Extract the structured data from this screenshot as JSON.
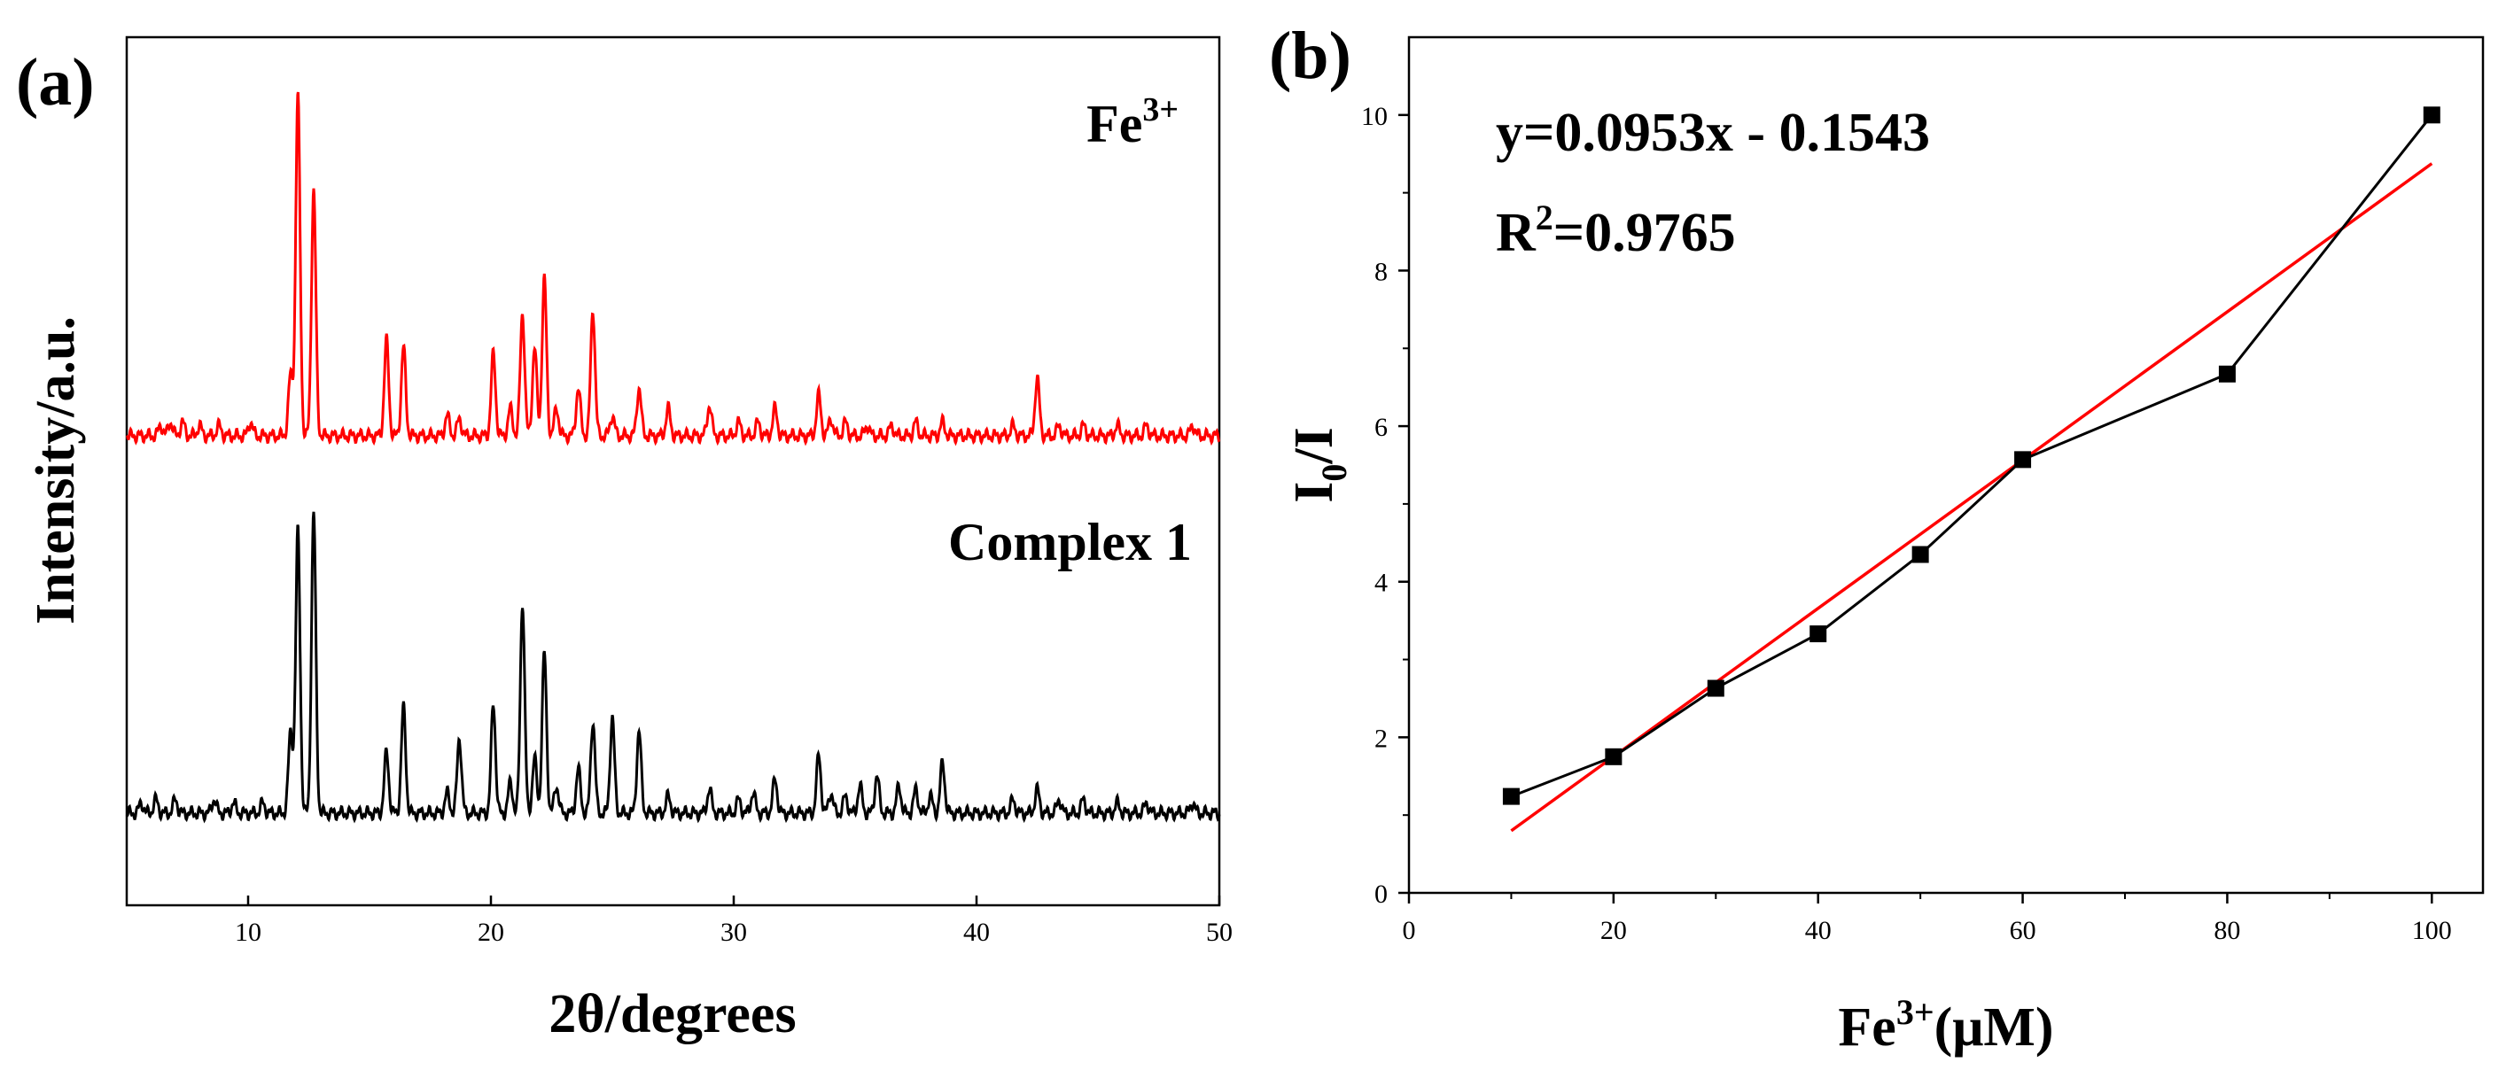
{
  "chart_data": [
    {
      "panel": "(a)",
      "type": "line",
      "xlabel": "2θ/degrees",
      "ylabel": "Intensity/a.u.",
      "xlim": [
        5,
        50
      ],
      "xticks": [
        "10",
        "20",
        "30",
        "40",
        "50"
      ],
      "series": [
        {
          "name": "Fe³⁺",
          "label_main": "Fe",
          "label_sup": "3+",
          "color": "#ff0000",
          "offset": 1.0,
          "peaks": [
            [
              6.4,
              0.03
            ],
            [
              6.8,
              0.04
            ],
            [
              7.3,
              0.04
            ],
            [
              8.0,
              0.03
            ],
            [
              8.8,
              0.03
            ],
            [
              10.1,
              0.04
            ],
            [
              11.75,
              0.18
            ],
            [
              12.05,
              1.0
            ],
            [
              12.7,
              0.72
            ],
            [
              15.7,
              0.28
            ],
            [
              16.4,
              0.26
            ],
            [
              18.2,
              0.06
            ],
            [
              18.7,
              0.05
            ],
            [
              20.1,
              0.24
            ],
            [
              20.8,
              0.08
            ],
            [
              21.3,
              0.36
            ],
            [
              21.8,
              0.26
            ],
            [
              22.2,
              0.46
            ],
            [
              22.7,
              0.08
            ],
            [
              23.6,
              0.14
            ],
            [
              24.2,
              0.37
            ],
            [
              25.0,
              0.06
            ],
            [
              26.1,
              0.14
            ],
            [
              27.3,
              0.08
            ],
            [
              29.0,
              0.09
            ],
            [
              30.2,
              0.04
            ],
            [
              31.0,
              0.04
            ],
            [
              31.7,
              0.08
            ],
            [
              33.5,
              0.12
            ],
            [
              34.0,
              0.05
            ],
            [
              34.6,
              0.04
            ],
            [
              35.5,
              0.03
            ],
            [
              36.5,
              0.03
            ],
            [
              37.5,
              0.04
            ],
            [
              38.6,
              0.04
            ],
            [
              41.5,
              0.03
            ],
            [
              42.5,
              0.17
            ],
            [
              43.4,
              0.03
            ],
            [
              44.4,
              0.03
            ],
            [
              45.8,
              0.03
            ],
            [
              47.0,
              0.03
            ],
            [
              48.9,
              0.03
            ]
          ]
        },
        {
          "name": "Complex 1",
          "color": "#000000",
          "offset": 0.0,
          "peaks": [
            [
              5.6,
              0.03
            ],
            [
              6.2,
              0.04
            ],
            [
              7.0,
              0.04
            ],
            [
              8.6,
              0.04
            ],
            [
              9.4,
              0.03
            ],
            [
              10.6,
              0.03
            ],
            [
              11.75,
              0.24
            ],
            [
              12.05,
              0.83
            ],
            [
              12.7,
              0.88
            ],
            [
              15.7,
              0.18
            ],
            [
              16.4,
              0.31
            ],
            [
              18.2,
              0.06
            ],
            [
              18.7,
              0.22
            ],
            [
              20.1,
              0.32
            ],
            [
              20.8,
              0.09
            ],
            [
              21.3,
              0.62
            ],
            [
              21.8,
              0.16
            ],
            [
              22.2,
              0.47
            ],
            [
              22.7,
              0.08
            ],
            [
              23.6,
              0.13
            ],
            [
              24.2,
              0.27
            ],
            [
              25.0,
              0.28
            ],
            [
              26.1,
              0.24
            ],
            [
              27.3,
              0.05
            ],
            [
              29.0,
              0.07
            ],
            [
              30.2,
              0.04
            ],
            [
              30.8,
              0.06
            ],
            [
              31.7,
              0.1
            ],
            [
              33.5,
              0.17
            ],
            [
              34.0,
              0.06
            ],
            [
              34.6,
              0.05
            ],
            [
              35.2,
              0.08
            ],
            [
              35.9,
              0.11
            ],
            [
              36.8,
              0.08
            ],
            [
              37.5,
              0.07
            ],
            [
              38.1,
              0.05
            ],
            [
              38.6,
              0.15
            ],
            [
              41.5,
              0.04
            ],
            [
              42.5,
              0.07
            ],
            [
              43.4,
              0.04
            ],
            [
              44.4,
              0.04
            ],
            [
              45.8,
              0.03
            ],
            [
              47.0,
              0.03
            ],
            [
              48.9,
              0.03
            ]
          ]
        }
      ]
    },
    {
      "panel": "(b)",
      "type": "scatter",
      "xlabel_main": "Fe",
      "xlabel_sup": "3+",
      "xlabel_unit": "(μM)",
      "ylabel_main": "I",
      "ylabel_sub": "0",
      "ylabel_rest": "/I",
      "xlim": [
        0,
        105
      ],
      "ylim": [
        0,
        11
      ],
      "xticks": [
        0,
        20,
        40,
        60,
        80,
        100
      ],
      "yticks": [
        0,
        2,
        4,
        6,
        8,
        10
      ],
      "x": [
        10,
        20,
        30,
        40,
        50,
        60,
        80,
        100
      ],
      "y": [
        1.24,
        1.75,
        2.63,
        3.33,
        4.35,
        5.57,
        6.67,
        10.0
      ],
      "marker_color": "#000000",
      "fit": {
        "slope": 0.0953,
        "intercept": -0.1543,
        "x_range": [
          10,
          100
        ],
        "color": "#ff0000",
        "equation": "y=0.0953x ‑ 0.1543",
        "r2_prefix": "R",
        "r2_sup": "2",
        "r2_value": "=0.9765"
      }
    }
  ]
}
